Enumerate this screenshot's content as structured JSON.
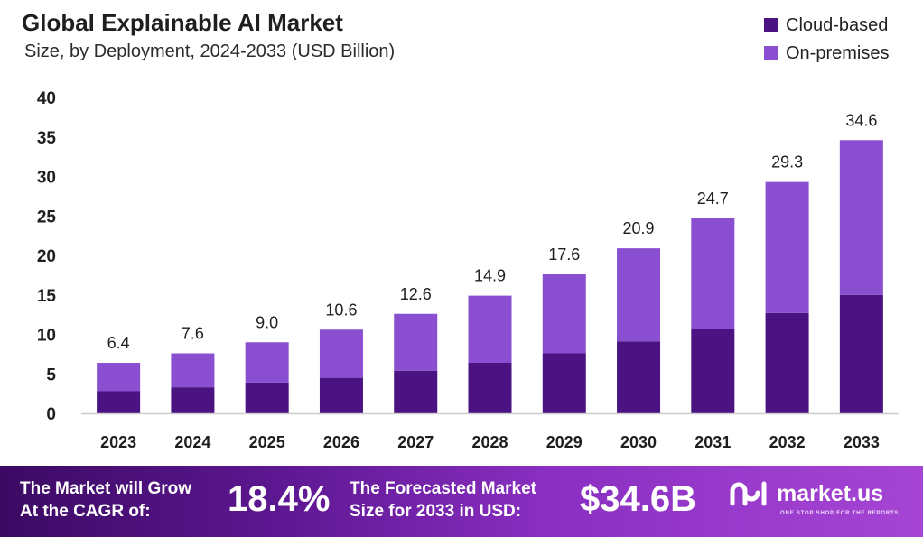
{
  "header": {
    "title": "Global Explainable AI Market",
    "subtitle": "Size, by Deployment, 2024-2033 (USD Billion)"
  },
  "colors": {
    "cloud": "#4b1281",
    "onprem": "#8a4fd0",
    "axis": "#cccccc"
  },
  "chart_data": {
    "type": "bar",
    "stacked": true,
    "categories": [
      "2023",
      "2024",
      "2025",
      "2026",
      "2027",
      "2028",
      "2029",
      "2030",
      "2031",
      "2032",
      "2033"
    ],
    "series": [
      {
        "name": "Cloud-based",
        "values": [
          2.8,
          3.3,
          3.9,
          4.5,
          5.4,
          6.4,
          7.6,
          9.1,
          10.7,
          12.7,
          15.0
        ]
      },
      {
        "name": "On-premises",
        "values": [
          3.6,
          4.3,
          5.1,
          6.1,
          7.2,
          8.5,
          10.0,
          11.8,
          14.0,
          16.6,
          19.6
        ]
      }
    ],
    "totals": [
      "6.4",
      "7.6",
      "9.0",
      "10.6",
      "12.6",
      "14.9",
      "17.6",
      "20.9",
      "24.7",
      "29.3",
      "34.6"
    ],
    "y_ticks": [
      0,
      5,
      10,
      15,
      20,
      25,
      30,
      35,
      40
    ],
    "ylim": [
      0,
      40
    ],
    "grid": false,
    "legend_position": "top-right"
  },
  "footer": {
    "cagr_line1": "The Market will Grow",
    "cagr_line2": "At the CAGR of:",
    "cagr_value": "18.4%",
    "forecast_line1": "The Forecasted Market",
    "forecast_line2": "Size for 2033 in USD:",
    "forecast_value": "$34.6B",
    "brand_name": "market.us",
    "brand_tagline": "ONE STOP SHOP FOR THE REPORTS"
  }
}
